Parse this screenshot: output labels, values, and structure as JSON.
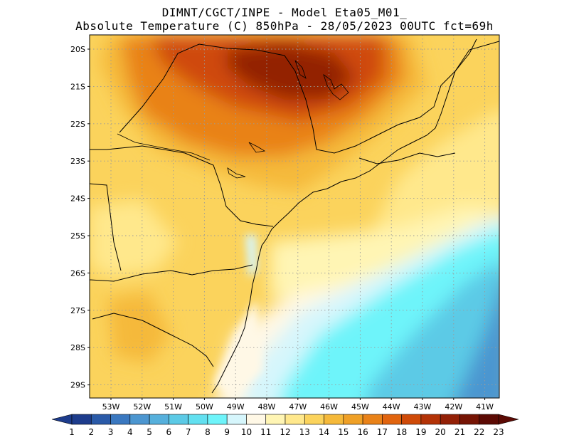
{
  "header": {
    "line1": "DIMNT/CGCT/INPE -  Model Eta05_M01_",
    "line2": "Absolute Temperature (C) 850hPa -  28/05/2023 00UTC fct=69h"
  },
  "map": {
    "lat_labels": [
      "20S",
      "21S",
      "22S",
      "23S",
      "24S",
      "25S",
      "26S",
      "27S",
      "28S",
      "29S"
    ],
    "lon_labels": [
      "53W",
      "52W",
      "51W",
      "50W",
      "49W",
      "48W",
      "47W",
      "46W",
      "45W",
      "44W",
      "43W",
      "42W",
      "41W"
    ],
    "lat_range": [
      -29.5,
      -19.8
    ],
    "lon_range": [
      -53.6,
      -40.5
    ],
    "grid": "dotted",
    "variable": "Absolute Temperature (C)",
    "level": "850hPa"
  },
  "colorbar": {
    "labels": [
      "1",
      "2",
      "3",
      "4",
      "5",
      "6",
      "7",
      "8",
      "9",
      "10",
      "11",
      "12",
      "13",
      "14",
      "15",
      "16",
      "17",
      "18",
      "19",
      "20",
      "21",
      "22",
      "23"
    ],
    "colors": [
      "#1d3c8c",
      "#2a5aa8",
      "#3a78c0",
      "#4c96d0",
      "#56b0dc",
      "#5ccae6",
      "#62e0f0",
      "#6ef4fa",
      "#d6f6fc",
      "#fff8e6",
      "#fff5b4",
      "#ffe88c",
      "#fbd35c",
      "#f5b93a",
      "#efa026",
      "#e98218",
      "#e1640e",
      "#cf4a08",
      "#b33206",
      "#932006",
      "#761404",
      "#5c0a04"
    ],
    "extends": "both"
  }
}
